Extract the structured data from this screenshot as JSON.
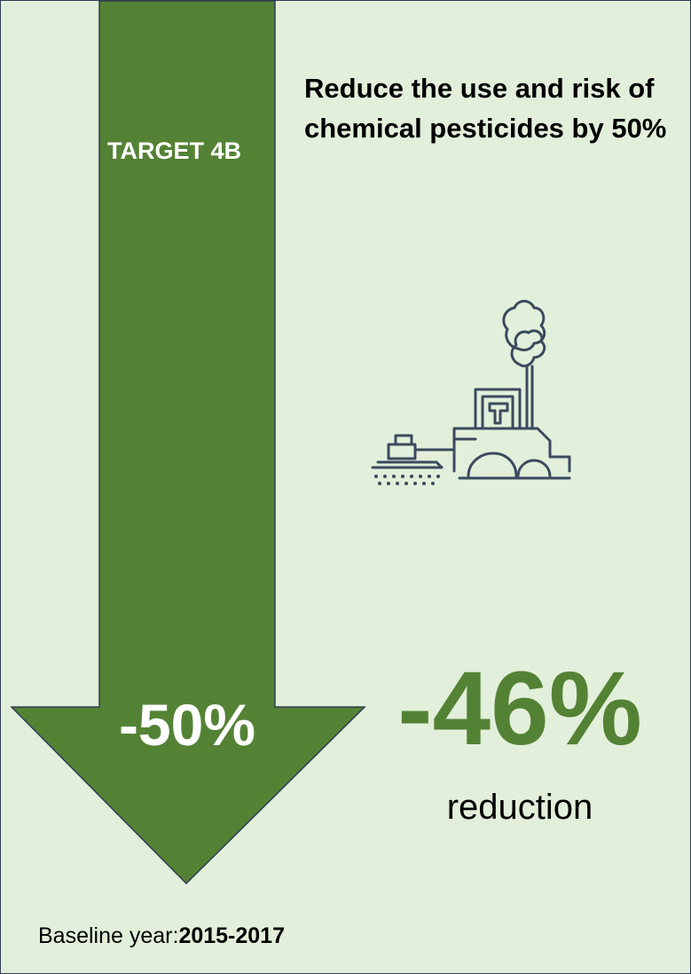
{
  "target": {
    "label": "TARGET 4B",
    "arrow_value": "-50%"
  },
  "heading": "Reduce the use and risk of chemical pesticides by 50%",
  "icon": "tractor-sprayer-icon",
  "result": {
    "value": "-46%",
    "label": "reduction"
  },
  "baseline": {
    "prefix": "Baseline year:",
    "years": "2015-2017"
  },
  "colors": {
    "background": "#e2efda",
    "arrow": "#548235",
    "result_text": "#548235",
    "border": "#2f3b52"
  }
}
